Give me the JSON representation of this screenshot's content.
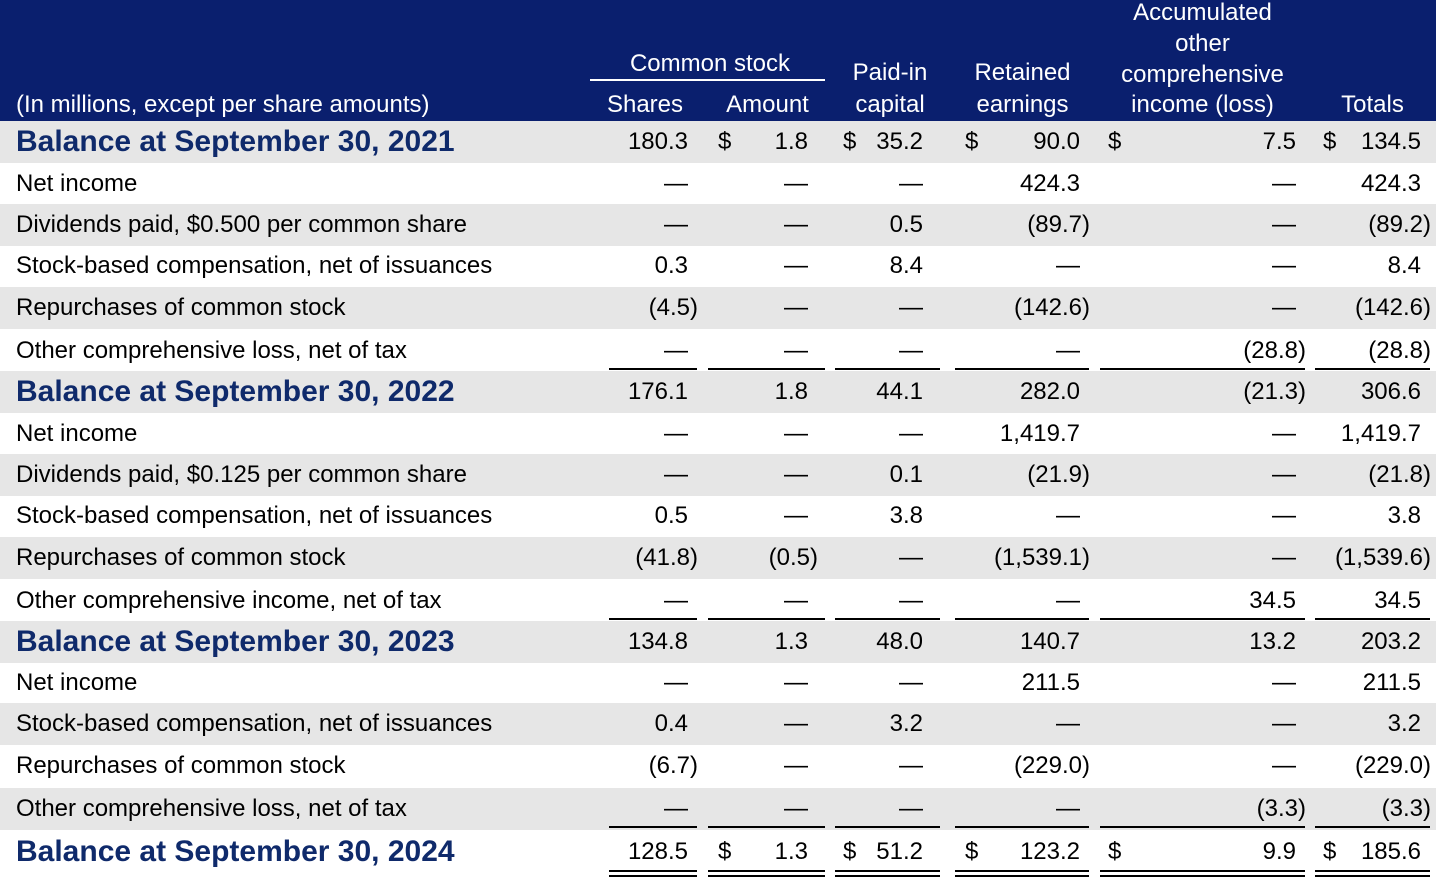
{
  "header": {
    "units_label": "(In millions, except per share amounts)",
    "common_stock_group": "Common stock",
    "col_shares": "Shares",
    "col_amount": "Amount",
    "col_paid_in_1": "Paid-in",
    "col_paid_in_2": "capital",
    "col_retained_1": "Retained",
    "col_retained_2": "earnings",
    "col_aoci_1": "Accumulated",
    "col_aoci_2": "other",
    "col_aoci_3": "comprehensive",
    "col_aoci_4": "income (loss)",
    "col_totals": "Totals"
  },
  "rows": [
    {
      "label": "Balance at September 30, 2021",
      "type": "balance",
      "values": [
        "180.3",
        "1.8",
        "35.2",
        "90.0",
        "7.5",
        "134.5"
      ],
      "dollar": [
        false,
        true,
        true,
        true,
        true,
        true
      ]
    },
    {
      "label": "Net income",
      "type": "item",
      "values": [
        "—",
        "—",
        "—",
        "424.3",
        "—",
        "424.3"
      ]
    },
    {
      "label": "Dividends paid, $0.500 per common share",
      "type": "item",
      "values": [
        "—",
        "—",
        "0.5",
        "(89.7)",
        "—",
        "(89.2)"
      ]
    },
    {
      "label": "Stock-based compensation, net of issuances",
      "type": "item",
      "values": [
        "0.3",
        "—",
        "8.4",
        "—",
        "—",
        "8.4"
      ]
    },
    {
      "label": "Repurchases of common stock",
      "type": "item",
      "values": [
        "(4.5)",
        "—",
        "—",
        "(142.6)",
        "—",
        "(142.6)"
      ]
    },
    {
      "label": "Other comprehensive loss, net of tax",
      "type": "item",
      "values": [
        "—",
        "—",
        "—",
        "—",
        "(28.8)",
        "(28.8)"
      ]
    },
    {
      "label": "Balance at September 30, 2022",
      "type": "balance",
      "values": [
        "176.1",
        "1.8",
        "44.1",
        "282.0",
        "(21.3)",
        "306.6"
      ]
    },
    {
      "label": "Net income",
      "type": "item",
      "values": [
        "—",
        "—",
        "—",
        "1,419.7",
        "—",
        "1,419.7"
      ]
    },
    {
      "label": "Dividends paid, $0.125 per common share",
      "type": "item",
      "values": [
        "—",
        "—",
        "0.1",
        "(21.9)",
        "—",
        "(21.8)"
      ]
    },
    {
      "label": "Stock-based compensation, net of issuances",
      "type": "item",
      "values": [
        "0.5",
        "—",
        "3.8",
        "—",
        "—",
        "3.8"
      ]
    },
    {
      "label": "Repurchases of common stock",
      "type": "item",
      "values": [
        "(41.8)",
        "(0.5)",
        "—",
        "(1,539.1)",
        "—",
        "(1,539.6)"
      ]
    },
    {
      "label": "Other comprehensive income, net of tax",
      "type": "item",
      "values": [
        "—",
        "—",
        "—",
        "—",
        "34.5",
        "34.5"
      ]
    },
    {
      "label": "Balance at September 30, 2023",
      "type": "balance",
      "values": [
        "134.8",
        "1.3",
        "48.0",
        "140.7",
        "13.2",
        "203.2"
      ]
    },
    {
      "label": "Net income",
      "type": "item",
      "values": [
        "—",
        "—",
        "—",
        "211.5",
        "—",
        "211.5"
      ]
    },
    {
      "label": "Stock-based compensation, net of issuances",
      "type": "item",
      "values": [
        "0.4",
        "—",
        "3.2",
        "—",
        "—",
        "3.2"
      ]
    },
    {
      "label": "Repurchases of common stock",
      "type": "item",
      "values": [
        "(6.7)",
        "—",
        "—",
        "(229.0)",
        "—",
        "(229.0)"
      ]
    },
    {
      "label": "Other comprehensive loss, net of tax",
      "type": "item",
      "values": [
        "—",
        "—",
        "—",
        "—",
        "(3.3)",
        "(3.3)"
      ]
    },
    {
      "label": "Balance at September 30, 2024",
      "type": "balance",
      "values": [
        "128.5",
        "1.3",
        "51.2",
        "123.2",
        "9.9",
        "185.6"
      ],
      "dollar": [
        false,
        true,
        true,
        true,
        true,
        true
      ]
    }
  ],
  "currency_symbol": "$",
  "colors": {
    "header_bg": "#0a1f6e",
    "balance_text": "#0f2a6b",
    "shade": "#e6e6e6"
  }
}
